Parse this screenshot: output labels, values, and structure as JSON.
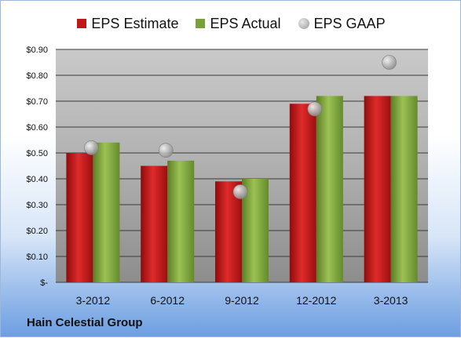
{
  "chart_data": {
    "type": "bar",
    "categories": [
      "3-2012",
      "6-2012",
      "9-2012",
      "12-2012",
      "3-2013"
    ],
    "series": [
      {
        "name": "EPS Estimate",
        "kind": "bar",
        "color": "#c01818",
        "values": [
          0.5,
          0.45,
          0.39,
          0.69,
          0.72
        ]
      },
      {
        "name": "EPS Actual",
        "kind": "bar",
        "color": "#7aa03a",
        "values": [
          0.54,
          0.47,
          0.4,
          0.72,
          0.72
        ]
      },
      {
        "name": "EPS GAAP",
        "kind": "scatter",
        "color": "#a8a8a8",
        "values": [
          0.52,
          0.51,
          0.35,
          0.67,
          0.85
        ]
      }
    ],
    "yticks": [
      0.0,
      0.1,
      0.2,
      0.3,
      0.4,
      0.5,
      0.6,
      0.7,
      0.8,
      0.9
    ],
    "ytick_labels": [
      "$-",
      "$0.10",
      "$0.20",
      "$0.30",
      "$0.40",
      "$0.50",
      "$0.60",
      "$0.70",
      "$0.80",
      "$0.90"
    ],
    "ylim": [
      0,
      0.9
    ],
    "grid": true,
    "legend_position": "top",
    "company": "Hain Celestial Group"
  }
}
